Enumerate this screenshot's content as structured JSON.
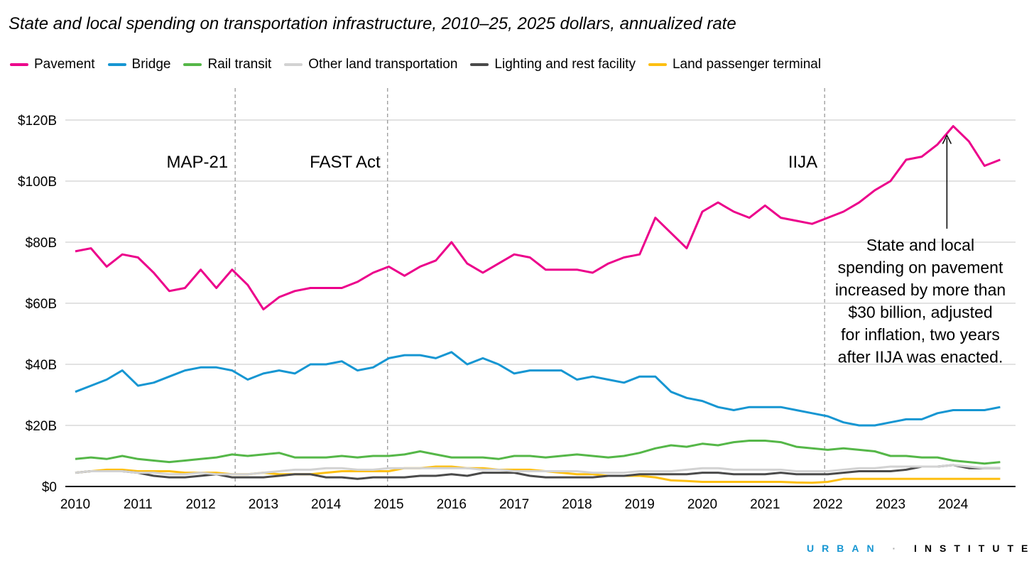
{
  "chart_data": {
    "type": "line",
    "title": "State and local spending on transportation infrastructure, 2010–25, 2025 dollars, annualized rate",
    "xlabel": "",
    "ylabel": "",
    "ylim": [
      0,
      120
    ],
    "xlim": [
      2010,
      2024.85
    ],
    "y_ticks": [
      0,
      20,
      40,
      60,
      80,
      100,
      120
    ],
    "y_tick_labels": [
      "$0",
      "$20B",
      "$40B",
      "$60B",
      "$80B",
      "$100B",
      "$120B"
    ],
    "x_ticks": [
      2010,
      2011,
      2012,
      2013,
      2014,
      2015,
      2016,
      2017,
      2018,
      2019,
      2020,
      2021,
      2022,
      2023,
      2024
    ],
    "x_tick_labels": [
      "2010",
      "2011",
      "2012",
      "2013",
      "2014",
      "2015",
      "2016",
      "2017",
      "2018",
      "2019",
      "2020",
      "2021",
      "2022",
      "2023",
      "2024"
    ],
    "grid": true,
    "legend_placement": "top",
    "x_start": 2010,
    "x_step": 0.25,
    "series": [
      {
        "name": "Pavement",
        "color": "#ec008b",
        "values": [
          77,
          78,
          72,
          76,
          75,
          70,
          64,
          65,
          71,
          65,
          71,
          66,
          58,
          62,
          64,
          65,
          65,
          65,
          67,
          70,
          72,
          69,
          72,
          74,
          80,
          73,
          70,
          73,
          76,
          75,
          71,
          71,
          71,
          70,
          73,
          75,
          76,
          88,
          83,
          78,
          90,
          93,
          90,
          88,
          92,
          88,
          87,
          86,
          88,
          90,
          93,
          97,
          100,
          107,
          108,
          112,
          118,
          113,
          105,
          107
        ]
      },
      {
        "name": "Bridge",
        "color": "#1696d2",
        "values": [
          31,
          33,
          35,
          38,
          33,
          34,
          36,
          38,
          39,
          39,
          38,
          35,
          37,
          38,
          37,
          40,
          40,
          41,
          38,
          39,
          42,
          43,
          43,
          42,
          44,
          40,
          42,
          40,
          37,
          38,
          38,
          38,
          35,
          36,
          35,
          34,
          36,
          36,
          31,
          29,
          28,
          26,
          25,
          26,
          26,
          26,
          25,
          24,
          23,
          21,
          20,
          20,
          21,
          22,
          22,
          24,
          25,
          25,
          25,
          26
        ]
      },
      {
        "name": "Rail transit",
        "color": "#55b748",
        "values": [
          9,
          9.5,
          9,
          10,
          9,
          8.5,
          8,
          8.5,
          9,
          9.5,
          10.5,
          10,
          10.5,
          11,
          9.5,
          9.5,
          9.5,
          10,
          9.5,
          10,
          10,
          10.5,
          11.5,
          10.5,
          9.5,
          9.5,
          9.5,
          9,
          10,
          10,
          9.5,
          10,
          10.5,
          10,
          9.5,
          10,
          11,
          12.5,
          13.5,
          13,
          14,
          13.5,
          14.5,
          15,
          15,
          14.5,
          13,
          12.5,
          12,
          12.5,
          12,
          11.5,
          10,
          10,
          9.5,
          9.5,
          8.5,
          8,
          7.5,
          8
        ]
      },
      {
        "name": "Other land transportation",
        "color": "#d2d2d2",
        "values": [
          4.5,
          5,
          5,
          5,
          4.5,
          4.5,
          4,
          4,
          4.5,
          4,
          4,
          4,
          4.5,
          5,
          5.5,
          5.5,
          6,
          6,
          5.5,
          5.5,
          6,
          6,
          6,
          6,
          6,
          6,
          5.5,
          5.5,
          5,
          5,
          5,
          5,
          5,
          4.5,
          4.5,
          4.5,
          5,
          5,
          5,
          5.5,
          6,
          6,
          5.5,
          5.5,
          5.5,
          5.5,
          5,
          5,
          5,
          5.5,
          6,
          6,
          6.5,
          6.5,
          6.5,
          6.5,
          7,
          6.5,
          6,
          6
        ]
      },
      {
        "name": "Lighting and rest facility",
        "color": "#4a4a4a",
        "values": [
          4.5,
          5,
          5,
          5,
          4.5,
          3.5,
          3,
          3,
          3.5,
          4,
          3,
          3,
          3,
          3.5,
          4,
          4,
          3,
          3,
          2.5,
          3,
          3,
          3,
          3.5,
          3.5,
          4,
          3.5,
          4.5,
          4.5,
          4.5,
          3.5,
          3,
          3,
          3,
          3,
          3.5,
          3.5,
          4,
          4,
          4,
          4,
          4.5,
          4.5,
          4,
          4,
          4,
          4.5,
          4,
          4,
          4,
          4.5,
          5,
          5,
          5,
          5.5,
          6.5,
          6.5,
          7,
          6,
          6,
          6
        ]
      },
      {
        "name": "Land passenger terminal",
        "color": "#fdbf11",
        "values": [
          4.5,
          5,
          5.5,
          5.5,
          5,
          5,
          5,
          4.5,
          4.5,
          4.5,
          4,
          4,
          4.5,
          4,
          4,
          4,
          4.5,
          5,
          5,
          5,
          5,
          6,
          6,
          6.5,
          6.5,
          6,
          6,
          5.5,
          5.5,
          5.5,
          5,
          4.5,
          4,
          4,
          3.5,
          3.5,
          3.5,
          3,
          2,
          1.8,
          1.5,
          1.5,
          1.5,
          1.5,
          1.5,
          1.5,
          1.3,
          1.2,
          1.5,
          2.5,
          2.5,
          2.5,
          2.5,
          2.5,
          2.5,
          2.5,
          2.5,
          2.5,
          2.5,
          2.5
        ]
      }
    ],
    "events": [
      {
        "label": "MAP-21",
        "x": 2012.55
      },
      {
        "label": "FAST Act",
        "x": 2014.98
      },
      {
        "label": "IIJA",
        "x": 2021.95
      }
    ],
    "annotation": {
      "lines": [
        "State and local",
        "spending on pavement",
        "increased by more than",
        "$30 billion, adjusted",
        "for inflation, two years",
        "after IIJA was enacted."
      ],
      "arrow_to": {
        "x": 2023.9,
        "y": 115
      }
    }
  },
  "branding": {
    "urban": "URBAN",
    "separator": "·",
    "institute": "INSTITUTE"
  }
}
